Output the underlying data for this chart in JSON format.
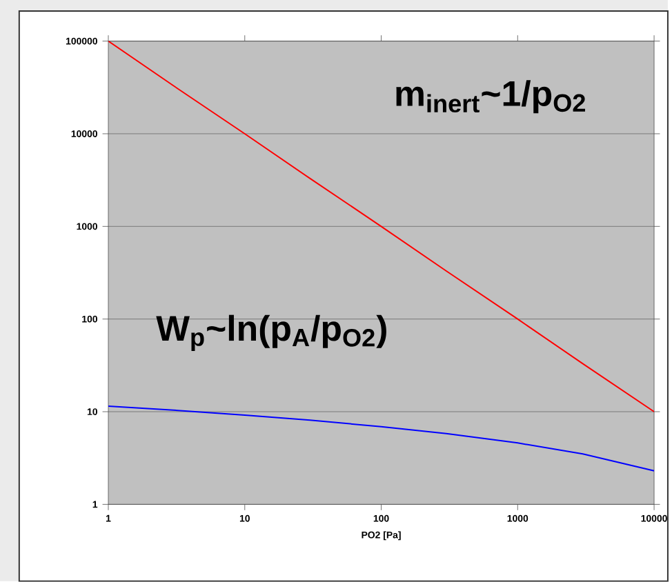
{
  "chart_data": {
    "type": "line",
    "xlabel": "PO2 [Pa]",
    "log": "xy",
    "x": [
      1,
      3,
      10,
      30,
      100,
      300,
      1000,
      3000,
      10000
    ],
    "series": [
      {
        "color": "#ff0000",
        "values": [
          100000,
          33000,
          10000,
          3300,
          1000,
          330,
          100,
          33,
          10
        ]
      },
      {
        "color": "#0000ff",
        "values": [
          11.5,
          10.4,
          9.2,
          8.1,
          6.9,
          5.8,
          4.6,
          3.5,
          2.3
        ]
      }
    ],
    "xlim": [
      1,
      10000
    ],
    "ylim": [
      1,
      100000
    ],
    "xticks": [
      1,
      10,
      100,
      1000,
      10000
    ],
    "yticks": [
      1,
      10,
      100,
      1000,
      10000,
      100000
    ],
    "grid": "y",
    "annotations": [
      "m$_{inert}$~1/p$_{O2}$",
      "W$_{p}$~ln(p$_{A}$/p$_{O2}$)"
    ]
  }
}
